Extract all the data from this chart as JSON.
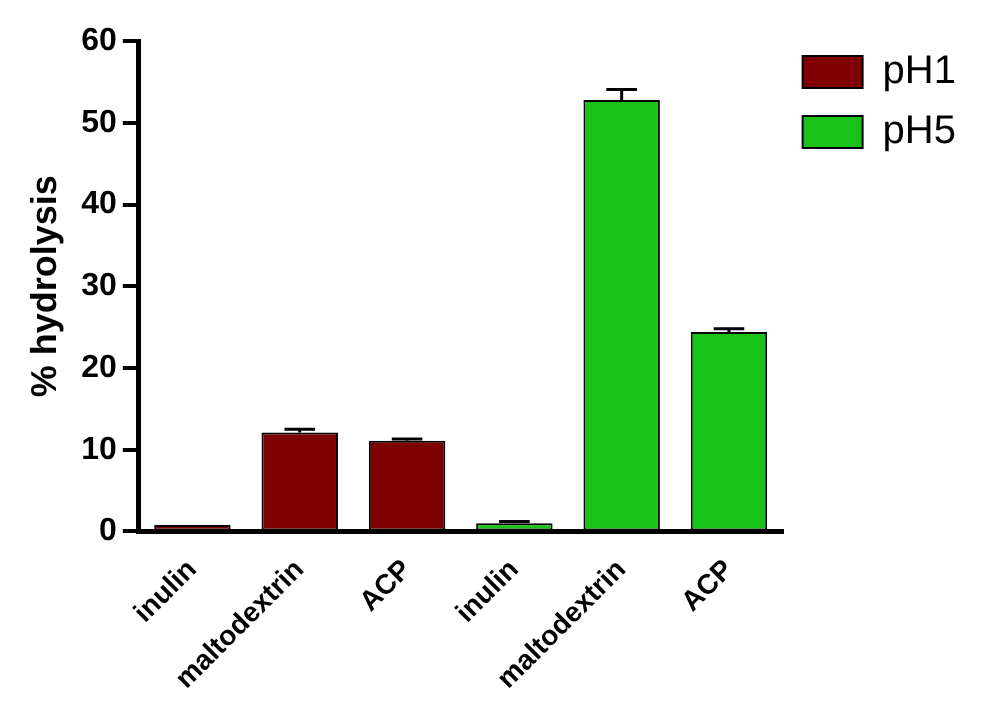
{
  "chart_data": {
    "type": "bar",
    "ylabel": "% hydrolysis",
    "categories": [
      "inulin",
      "maltodextrin",
      "ACP",
      "inulin",
      "maltodextrin",
      "ACP"
    ],
    "series": [
      {
        "name": "pH1",
        "color": "#7f0000",
        "values": [
          0.8,
          12.1,
          11.1,
          null,
          null,
          null
        ],
        "errors": [
          null,
          0.4,
          0.2,
          null,
          null,
          null
        ]
      },
      {
        "name": "pH5",
        "color": "#19c219",
        "values": [
          null,
          null,
          null,
          1.0,
          52.8,
          24.4
        ],
        "errors": [
          null,
          null,
          null,
          0.2,
          1.3,
          0.4
        ]
      }
    ],
    "ylim": [
      0,
      60
    ],
    "yticks": [
      0,
      10,
      20,
      30,
      40,
      50,
      60
    ],
    "grid": false,
    "legend": "top right"
  }
}
